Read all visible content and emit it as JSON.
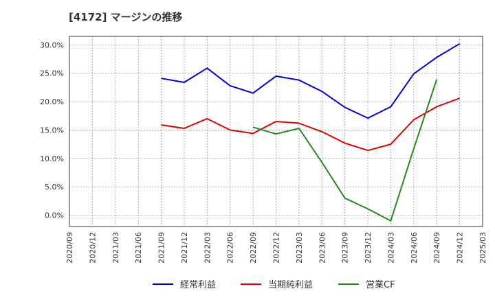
{
  "chart_data": {
    "type": "line",
    "title": "[4172]  マージンの推移",
    "x": [
      "2020/09",
      "2020/12",
      "2021/03",
      "2021/06",
      "2021/09",
      "2021/12",
      "2022/03",
      "2022/06",
      "2022/09",
      "2022/12",
      "2023/03",
      "2023/06",
      "2023/09",
      "2023/12",
      "2024/03",
      "2024/06",
      "2024/09",
      "2024/12",
      "2025/03"
    ],
    "ylim": [
      -2.0,
      31.5
    ],
    "yticks": [
      0,
      5,
      10,
      15,
      20,
      25,
      30
    ],
    "ytick_labels": [
      "0.0%",
      "5.0%",
      "10.0%",
      "15.0%",
      "20.0%",
      "25.0%",
      "30.0%"
    ],
    "grid": true,
    "legend_position": "bottom",
    "series": [
      {
        "name": "経常利益",
        "color": "#0000cc",
        "values": [
          null,
          null,
          null,
          null,
          24.1,
          23.4,
          25.9,
          22.8,
          21.5,
          24.5,
          23.8,
          21.8,
          19.0,
          17.1,
          19.1,
          24.9,
          27.8,
          30.2,
          null
        ]
      },
      {
        "name": "当期純利益",
        "color": "#dd0000",
        "values": [
          null,
          null,
          null,
          null,
          15.9,
          15.3,
          17.0,
          15.0,
          14.4,
          16.5,
          16.2,
          14.7,
          12.7,
          11.4,
          12.5,
          16.8,
          19.1,
          20.6,
          null
        ]
      },
      {
        "name": "営業CF",
        "color": "#228822",
        "values": [
          null,
          null,
          null,
          null,
          null,
          null,
          null,
          null,
          15.5,
          14.3,
          15.3,
          9.3,
          3.0,
          1.1,
          -1.0,
          11.7,
          23.9,
          null,
          null
        ]
      }
    ]
  }
}
